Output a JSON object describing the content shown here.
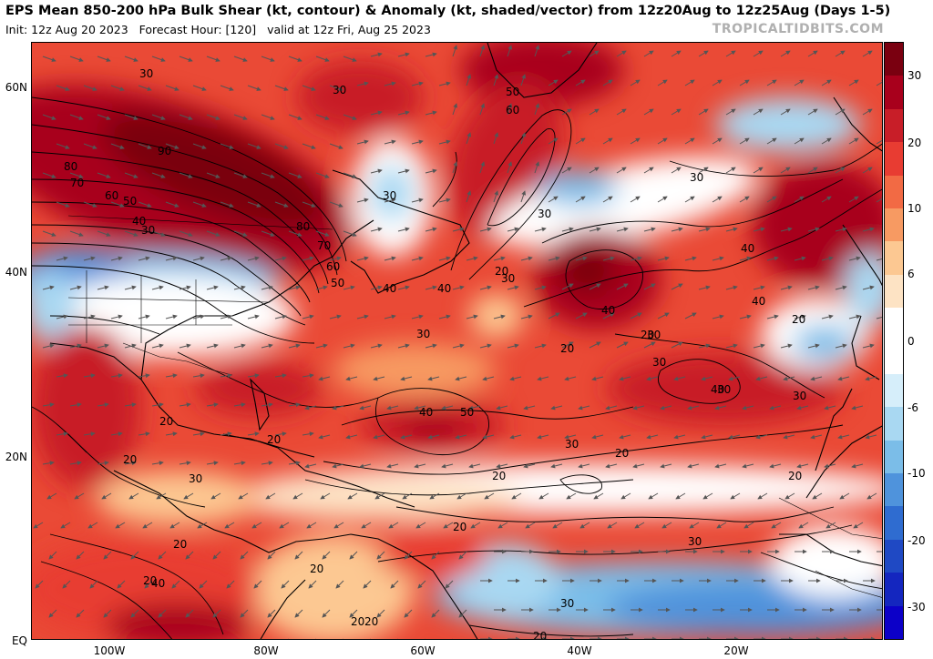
{
  "header": {
    "title": "EPS Mean 850-200 hPa Bulk Shear (kt, contour) & Anomaly (kt, shaded/vector) from 12z20Aug to 12z25Aug (Days 1-5)",
    "init": "Init: 12z Aug 20 2023",
    "forecast_hour": "Forecast Hour: [120]",
    "valid": "valid at 12z Fri, Aug 25 2023",
    "credit": "TROPICALTIDBITS.COM"
  },
  "axes": {
    "lat_labels": [
      "60N",
      "40N",
      "20N",
      "EQ"
    ],
    "lon_labels": [
      "100W",
      "80W",
      "60W",
      "40W",
      "20W"
    ]
  },
  "colorbar": {
    "labels": [
      "30",
      "20",
      "10",
      "6",
      "0",
      "-6",
      "-10",
      "-20",
      "-30"
    ],
    "colors": [
      "#7a0010",
      "#a8001c",
      "#c81e28",
      "#e83c32",
      "#f26a44",
      "#f79a62",
      "#fcc892",
      "#fde3c4",
      "#ffffff",
      "#ffffff",
      "#d6eefa",
      "#a9d8f2",
      "#7bbde8",
      "#4f93dc",
      "#2f6cd0",
      "#1f49c4",
      "#1426bf",
      "#0c00c8"
    ]
  },
  "contour_labels": [
    "30",
    "30",
    "90",
    "80",
    "70",
    "60",
    "50",
    "40",
    "30",
    "30",
    "80",
    "70",
    "60",
    "50",
    "50",
    "60",
    "30",
    "30",
    "40",
    "40",
    "40",
    "20",
    "30",
    "30",
    "40",
    "40",
    "30",
    "20",
    "20",
    "30",
    "40",
    "40",
    "50",
    "30",
    "30",
    "20",
    "20",
    "30",
    "20",
    "20",
    "30",
    "20",
    "20",
    "20",
    "30",
    "20",
    "20",
    "40",
    "20",
    "20",
    "20",
    "20",
    "20",
    "30"
  ]
}
